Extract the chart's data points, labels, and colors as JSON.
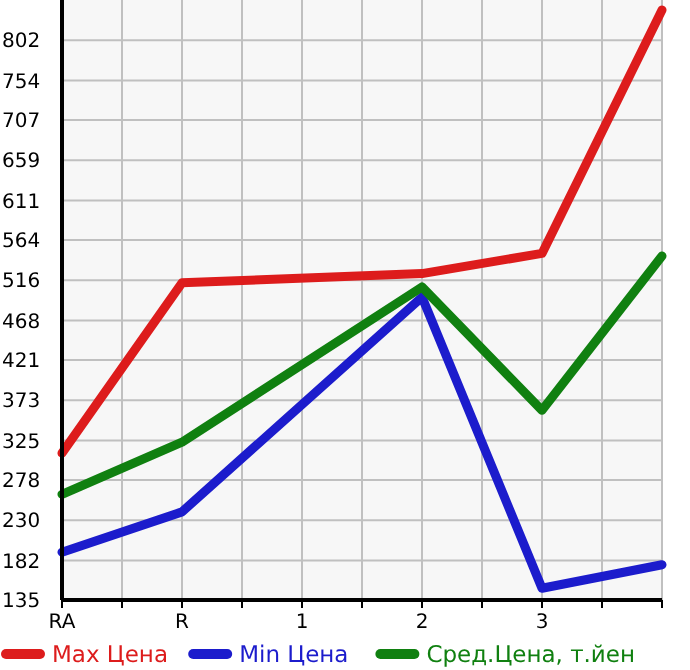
{
  "chart_data": {
    "type": "line",
    "categories": [
      "RA",
      "R",
      "1",
      "2",
      "3",
      null
    ],
    "series": [
      {
        "name": "Max Цена",
        "color": "#dd1c1c",
        "values": [
          310,
          513,
          null,
          524,
          548,
          838
        ]
      },
      {
        "name": "Min Цена",
        "color": "#1c1ccc",
        "values": [
          192,
          240,
          null,
          496,
          149,
          177
        ]
      },
      {
        "name": "Сред.Цена, т.йен",
        "color": "#108010",
        "values": [
          261,
          323,
          null,
          508,
          361,
          545
        ]
      }
    ],
    "ylim": [
      135,
      850
    ],
    "yticks": [
      135,
      182,
      230,
      278,
      325,
      373,
      421,
      468,
      516,
      564,
      611,
      659,
      707,
      754,
      802
    ],
    "grid": true,
    "legend": "bottom",
    "marker": "none",
    "line_style": "solid"
  }
}
